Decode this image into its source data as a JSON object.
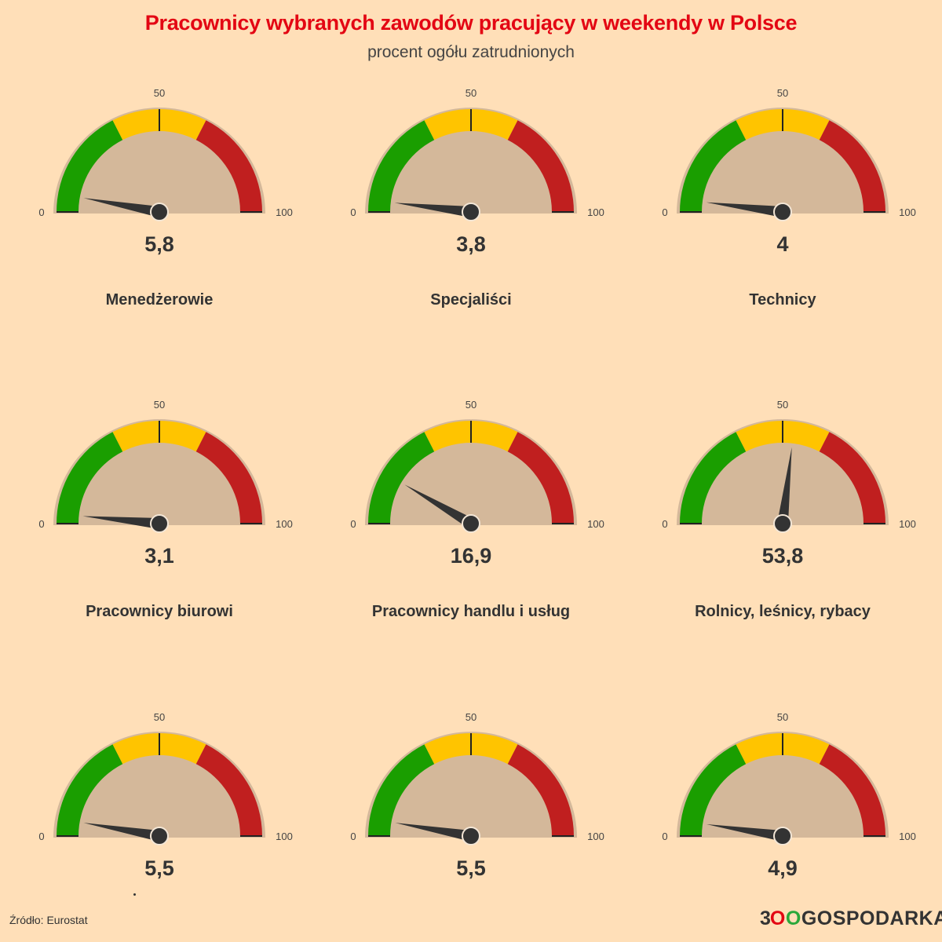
{
  "header": {
    "title": "Pracownicy wybranych zawodów pracujący w weekendy w Polsce",
    "subtitle": "procent ogółu zatrudnionych"
  },
  "footer": {
    "source": "Źródło: Eurostat",
    "logo_prefix": "3",
    "logo_o1": "O",
    "logo_o2": "O",
    "logo_suffix": "GOSPODARKA"
  },
  "colors": {
    "background": "#ffdfb8",
    "gauge_face": "#d4b89a",
    "band_low": "#1a9e00",
    "band_mid": "#ffc400",
    "band_high": "#c01f1f",
    "needle": "#333333",
    "title": "#e30613"
  },
  "chart_data": {
    "type": "gauge",
    "min": 0,
    "max": 100,
    "tick_labels": [
      "0",
      "50",
      "100"
    ],
    "bands": [
      {
        "from": 0,
        "to": 35,
        "color": "#1a9e00"
      },
      {
        "from": 35,
        "to": 65,
        "color": "#ffc400"
      },
      {
        "from": 65,
        "to": 100,
        "color": "#c01f1f"
      }
    ],
    "gauges": [
      {
        "label": "Menedżerowie",
        "value": 5.8,
        "display": "5,8"
      },
      {
        "label": "Specjaliści",
        "value": 3.8,
        "display": "3,8"
      },
      {
        "label": "Technicy",
        "value": 4,
        "display": "4"
      },
      {
        "label": "Pracownicy biurowi",
        "value": 3.1,
        "display": "3,1"
      },
      {
        "label": "Pracownicy handlu i usług",
        "value": 16.9,
        "display": "16,9"
      },
      {
        "label": "Rolnicy, leśnicy, rybacy",
        "value": 53.8,
        "display": "53,8"
      },
      {
        "label": "",
        "value": 5.5,
        "display": "5,5"
      },
      {
        "label": "",
        "value": 5.5,
        "display": "5,5"
      },
      {
        "label": "",
        "value": 4.9,
        "display": "4,9"
      }
    ]
  }
}
